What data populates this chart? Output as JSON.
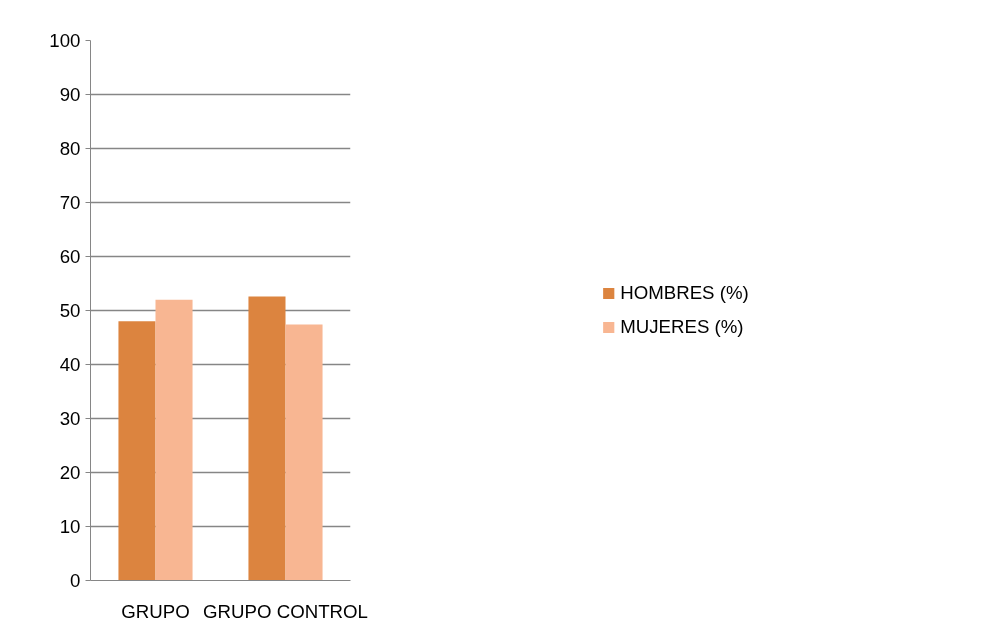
{
  "chart_data": {
    "type": "bar",
    "categories": [
      "GRUPO",
      "GRUPO CONTROL"
    ],
    "series": [
      {
        "name": "HOMBRES (%)",
        "color": "#dc843f",
        "values": [
          48.0,
          52.6
        ]
      },
      {
        "name": "MUJERES (%)",
        "color": "#f8b692",
        "values": [
          52.0,
          47.4
        ]
      }
    ],
    "ylim": [
      0,
      100
    ],
    "yticks": [
      0,
      10,
      20,
      30,
      40,
      50,
      60,
      70,
      80,
      90,
      100
    ],
    "grid": "y",
    "legend": "right"
  }
}
